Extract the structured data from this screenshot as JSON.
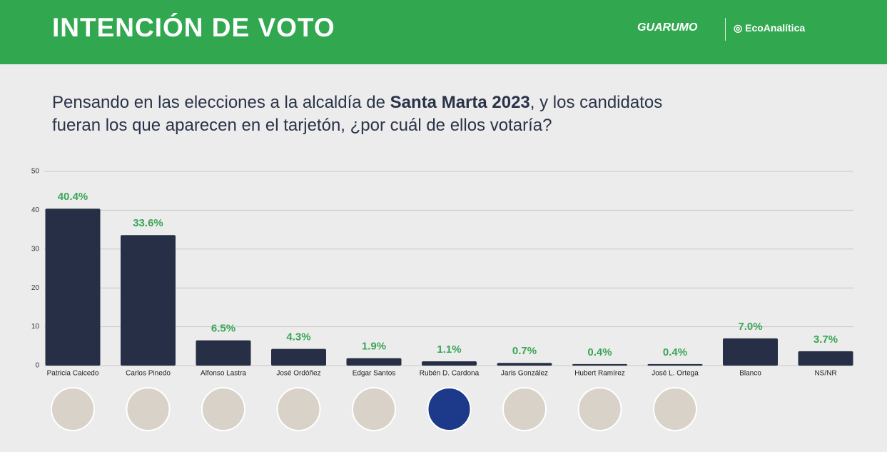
{
  "header": {
    "title": "INTENCIÓN DE VOTO",
    "logo_left": "GUARUMO",
    "logo_right": "EcoAnalítica"
  },
  "question": [
    "Pensando en las elecciones a la alcaldía de ",
    "Santa Marta 2023",
    ", y los candidatos fueran los que aparecen en el tarjetón, ¿por cuál de ellos votaría?"
  ],
  "chart_data": {
    "type": "bar",
    "categories": [
      "Patricia Caicedo",
      "Carlos Pinedo",
      "Alfonso Lastra",
      "José Ordóñez",
      "Edgar Santos",
      "Rubén D. Cardona",
      "Jaris González",
      "Hubert Ramírez",
      "José L. Ortega",
      "Blanco",
      "NS/NR"
    ],
    "values": [
      40.4,
      33.6,
      6.5,
      4.3,
      1.9,
      1.1,
      0.7,
      0.4,
      0.4,
      7.0,
      3.7
    ],
    "value_labels": [
      "40.4%",
      "33.6%",
      "6.5%",
      "4.3%",
      "1.9%",
      "1.1%",
      "0.7%",
      "0.4%",
      "0.4%",
      "7.0%",
      "3.7%"
    ],
    "color": "#262f45",
    "label_color": "#3aa655",
    "ylim": [
      0,
      50
    ],
    "yticks": [
      0,
      10,
      20,
      30,
      40,
      50
    ],
    "grid": true
  }
}
